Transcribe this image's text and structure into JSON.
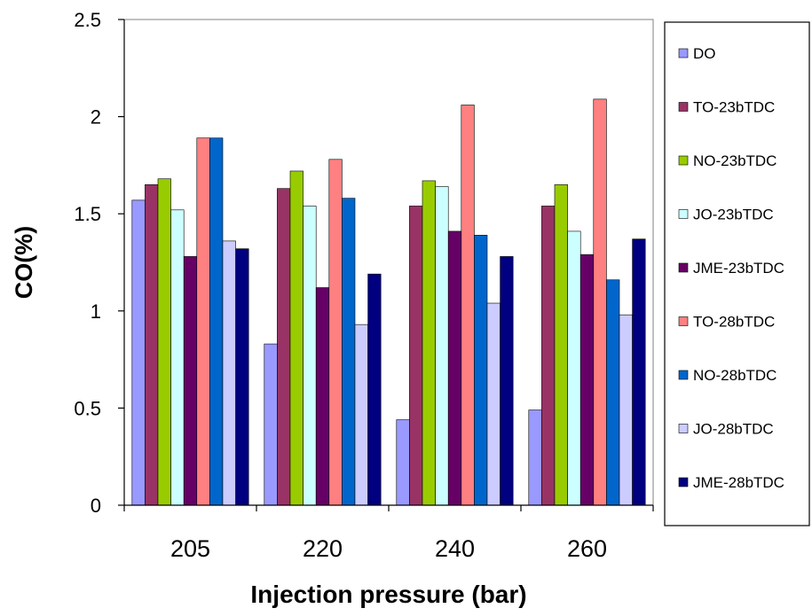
{
  "chart_data": {
    "type": "bar",
    "title": "",
    "xlabel": "Injection pressure (bar)",
    "ylabel": "CO(%)",
    "ylim": [
      0,
      2.5
    ],
    "yticks": [
      "0",
      "0.5",
      "1",
      "1.5",
      "2",
      "2.5"
    ],
    "categories": [
      "205",
      "220",
      "240",
      "260"
    ],
    "grid": false,
    "legend_position": "right",
    "series": [
      {
        "name": "DO",
        "color": "#9999ff",
        "values": [
          1.57,
          0.83,
          0.44,
          0.49
        ]
      },
      {
        "name": "TO-23bTDC",
        "color": "#993366",
        "values": [
          1.65,
          1.63,
          1.54,
          1.54
        ]
      },
      {
        "name": "NO-23bTDC",
        "color": "#99cc00",
        "values": [
          1.68,
          1.72,
          1.67,
          1.65
        ]
      },
      {
        "name": "JO-23bTDC",
        "color": "#ccffff",
        "values": [
          1.52,
          1.54,
          1.64,
          1.41
        ]
      },
      {
        "name": "JME-23bTDC",
        "color": "#660066",
        "values": [
          1.28,
          1.12,
          1.41,
          1.29
        ]
      },
      {
        "name": "TO-28bTDC",
        "color": "#ff8080",
        "values": [
          1.89,
          1.78,
          2.06,
          2.09
        ]
      },
      {
        "name": "NO-28bTDC",
        "color": "#0066cc",
        "values": [
          1.89,
          1.58,
          1.39,
          1.16
        ]
      },
      {
        "name": "JO-28bTDC",
        "color": "#ccccff",
        "values": [
          1.36,
          0.93,
          1.04,
          0.98
        ]
      },
      {
        "name": "JME-28bTDC",
        "color": "#000080",
        "values": [
          1.32,
          1.19,
          1.28,
          1.37
        ]
      }
    ]
  }
}
